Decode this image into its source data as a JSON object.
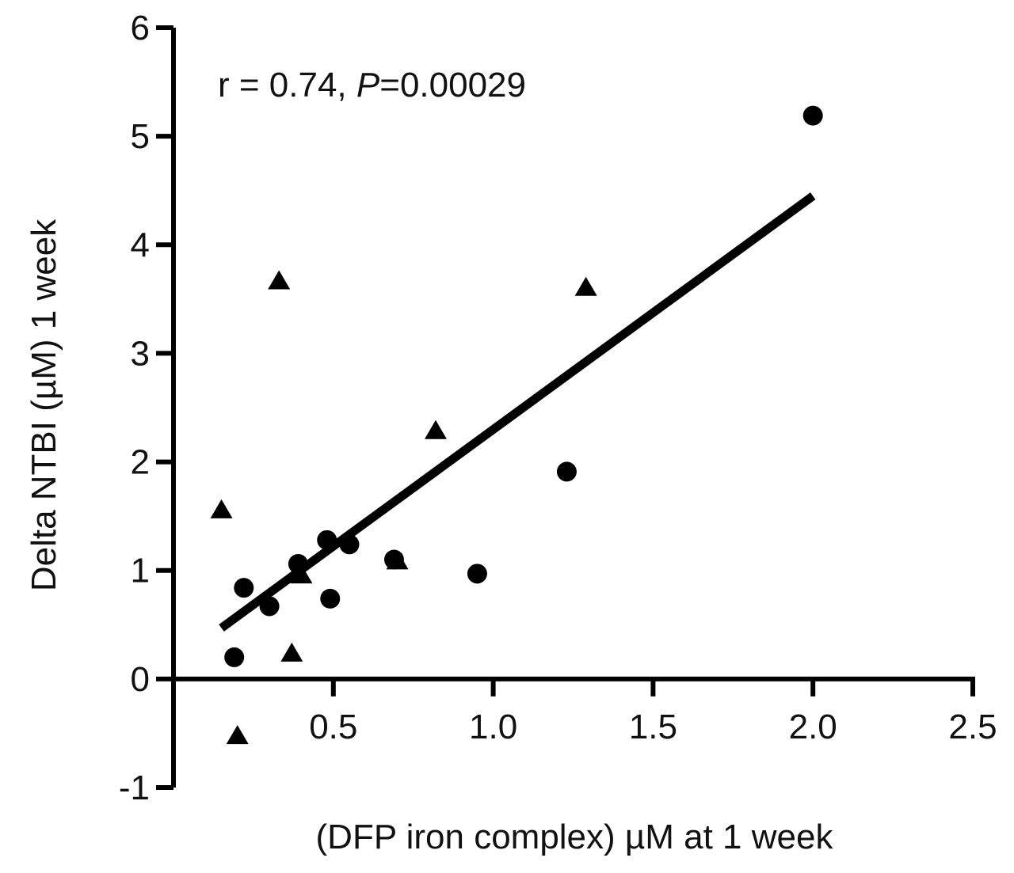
{
  "chart_data": {
    "type": "scatter",
    "title": "",
    "xlabel": "(DFP iron complex) µM at 1 week",
    "ylabel": "Delta NTBI (µM) 1 week",
    "xlim": [
      0,
      2.5
    ],
    "ylim": [
      -1,
      6
    ],
    "xticks": [
      0.5,
      1.0,
      1.5,
      2.0,
      2.5
    ],
    "xtick_labels": [
      "0.5",
      "1.0",
      "1.5",
      "2.0",
      "2.5"
    ],
    "yticks": [
      -1,
      0,
      1,
      2,
      3,
      4,
      5,
      6
    ],
    "ytick_labels": [
      "-1",
      "0",
      "1",
      "2",
      "3",
      "4",
      "5",
      "6"
    ],
    "grid": false,
    "annotation": {
      "prefix": "r = 0.74, ",
      "italic": "P",
      "suffix": "=0.00029"
    },
    "series": [
      {
        "name": "circles",
        "marker": "circle",
        "color": "#000000",
        "points": [
          {
            "x": 0.19,
            "y": 0.2
          },
          {
            "x": 0.22,
            "y": 0.84
          },
          {
            "x": 0.3,
            "y": 0.67
          },
          {
            "x": 0.39,
            "y": 1.06
          },
          {
            "x": 0.48,
            "y": 1.28
          },
          {
            "x": 0.49,
            "y": 0.74
          },
          {
            "x": 0.55,
            "y": 1.24
          },
          {
            "x": 0.69,
            "y": 1.1
          },
          {
            "x": 0.95,
            "y": 0.97
          },
          {
            "x": 1.23,
            "y": 1.91
          },
          {
            "x": 2.0,
            "y": 5.19
          }
        ]
      },
      {
        "name": "triangles",
        "marker": "triangle",
        "color": "#000000",
        "points": [
          {
            "x": 0.15,
            "y": 1.55
          },
          {
            "x": 0.2,
            "y": -0.53
          },
          {
            "x": 0.33,
            "y": 3.66
          },
          {
            "x": 0.37,
            "y": 0.23
          },
          {
            "x": 0.4,
            "y": 0.95
          },
          {
            "x": 0.7,
            "y": 1.08
          },
          {
            "x": 0.82,
            "y": 2.28
          },
          {
            "x": 1.29,
            "y": 3.6
          }
        ]
      }
    ],
    "regression": {
      "x_start": 0.15,
      "y_start": 0.47,
      "x_end": 2.0,
      "y_end": 4.45
    }
  }
}
